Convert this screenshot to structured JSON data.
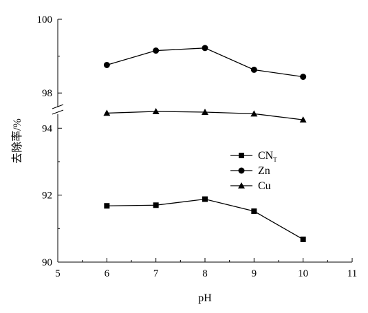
{
  "chart_data": {
    "type": "line",
    "xlabel": "pH",
    "ylabel": "去除率/%",
    "xlim": [
      5,
      11
    ],
    "x_ticks": [
      "5",
      "6",
      "7",
      "8",
      "9",
      "10",
      "11"
    ],
    "y_axis_broken": true,
    "y_break_range": [
      94.5,
      97.5
    ],
    "y_lower_range": [
      90,
      94.5
    ],
    "y_upper_range": [
      97.5,
      100
    ],
    "y_ticks": [
      "90",
      "92",
      "94",
      "98",
      "100"
    ],
    "x": [
      6,
      7,
      8,
      9,
      10
    ],
    "legend_position": "center-right",
    "series": [
      {
        "name": "CN",
        "name_sub": "T",
        "marker": "square",
        "values": [
          91.68,
          91.7,
          91.88,
          91.52,
          90.68
        ]
      },
      {
        "name": "Zn",
        "name_sub": "",
        "marker": "circle",
        "values": [
          98.76,
          99.15,
          99.22,
          98.63,
          98.44
        ]
      },
      {
        "name": "Cu",
        "name_sub": "",
        "marker": "triangle",
        "values": [
          94.45,
          94.5,
          94.48,
          94.43,
          94.25
        ]
      }
    ]
  }
}
